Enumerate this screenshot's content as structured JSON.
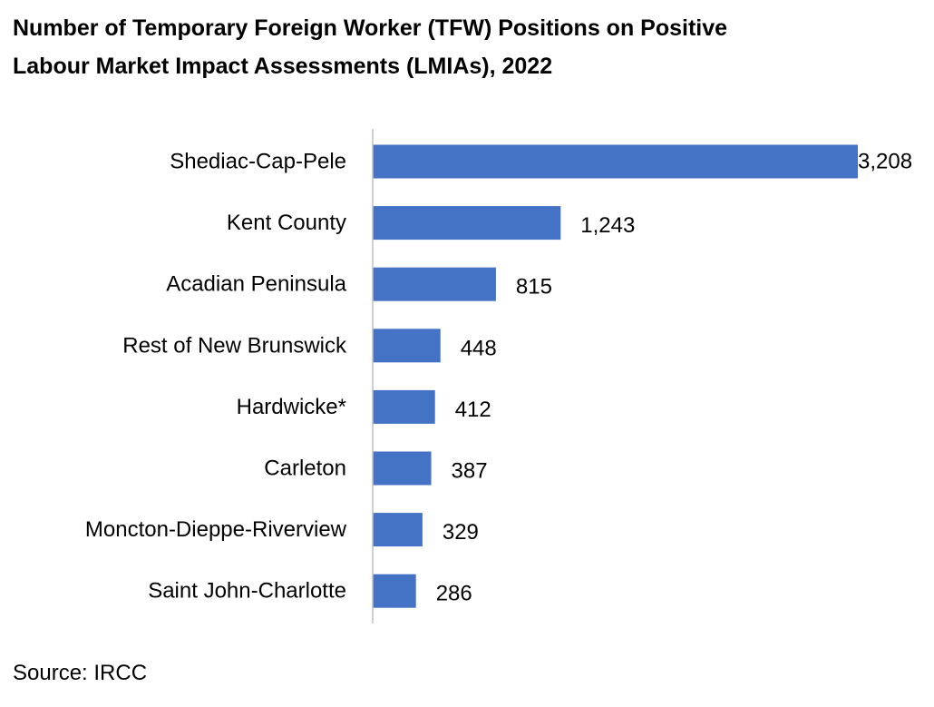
{
  "chart_data": {
    "type": "bar",
    "orientation": "horizontal",
    "title": "Number of Temporary Foreign Worker (TFW) Positions on Positive\nLabour Market Impact Assessments (LMIAs), 2022",
    "categories": [
      "Shediac-Cap-Pele",
      "Kent County",
      "Acadian Peninsula",
      "Rest of New Brunswick",
      "Hardwicke*",
      "Carleton",
      "Moncton-Dieppe-Riverview",
      "Saint John-Charlotte"
    ],
    "values": [
      3208,
      1243,
      815,
      448,
      412,
      387,
      329,
      286
    ],
    "value_labels": [
      "3,208",
      "1,243",
      "815",
      "448",
      "412",
      "387",
      "329",
      "286"
    ],
    "xlim": [
      0,
      3208
    ],
    "bar_color": "#4472C4",
    "axis_color": "#BFBFBF",
    "grid": false,
    "legend": "none"
  },
  "source_note": "Source: IRCC"
}
